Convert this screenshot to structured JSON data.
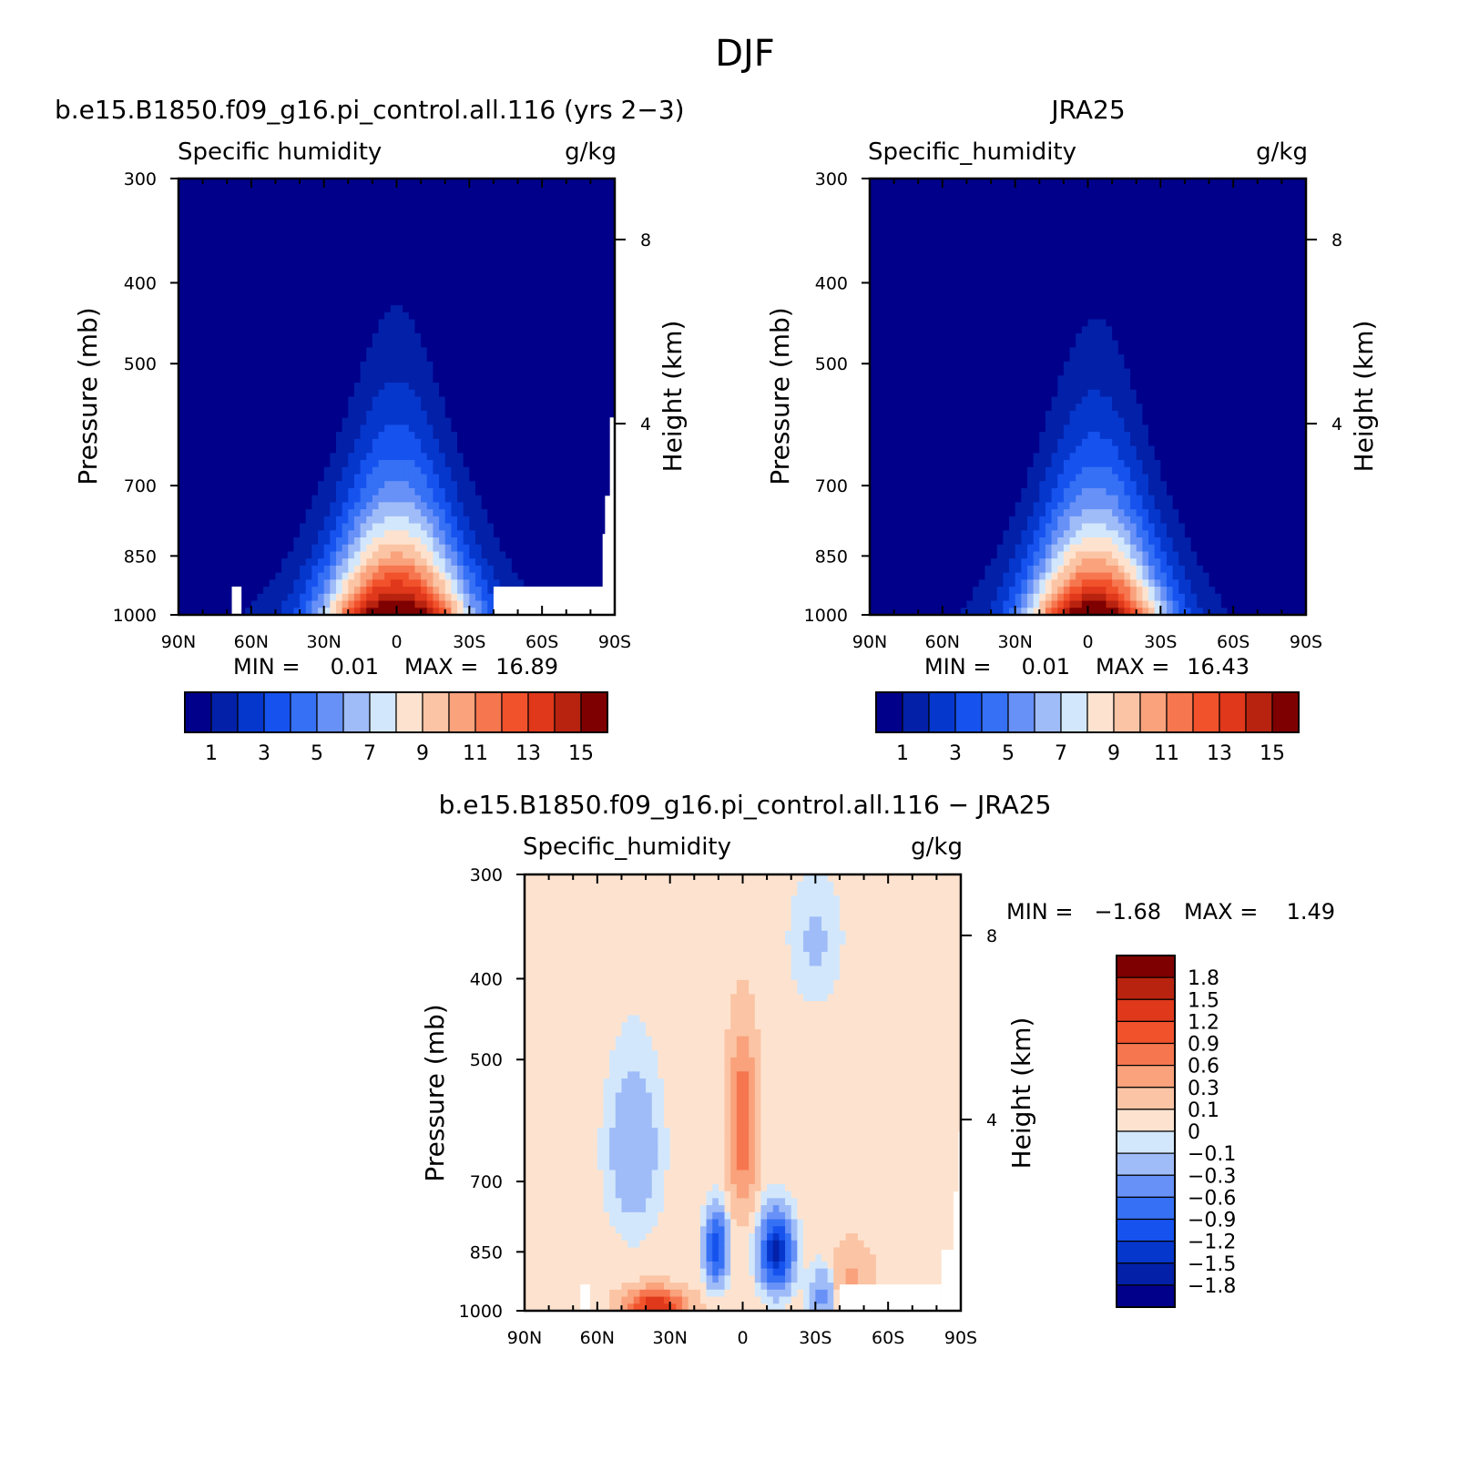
{
  "figure_title": "DJF",
  "colors": {
    "q_levels": [
      "#00008b",
      "#0320a8",
      "#0637cc",
      "#1652ee",
      "#3570f5",
      "#6891f7",
      "#9fbcf8",
      "#d2e7fb",
      "#fde3cf",
      "#fbc4a4",
      "#f9a27c",
      "#f6764f",
      "#f1522c",
      "#e0381b",
      "#b8230f",
      "#7f0000"
    ],
    "diff_levels": [
      "#00008b",
      "#0320a8",
      "#0637cc",
      "#1652ee",
      "#3570f5",
      "#6891f7",
      "#9fbcf8",
      "#d2e7fb",
      "#fde3cf",
      "#fbc4a4",
      "#f9a27c",
      "#f6764f",
      "#f1522c",
      "#e0381b",
      "#b8230f",
      "#7f0000"
    ]
  },
  "panels": [
    {
      "id": "model",
      "title": "b.e15.B1850.f09_g16.pi_control.all.116 (yrs 2−3)",
      "left_label": "Specific humidity",
      "units": "g/kg",
      "ylabel": "Pressure (mb)",
      "right_ylabel": "Height (km)",
      "stats_min_label": "MIN =",
      "stats_min": "0.01",
      "stats_max_label": "MAX =",
      "stats_max": "16.89"
    },
    {
      "id": "obs",
      "title": "JRA25",
      "left_label": "Specific_humidity",
      "units": "g/kg",
      "ylabel": "Pressure (mb)",
      "right_ylabel": "Height (km)",
      "stats_min_label": "MIN =",
      "stats_min": "0.01",
      "stats_max_label": "MAX =",
      "stats_max": "16.43"
    },
    {
      "id": "diff",
      "title": "b.e15.B1850.f09_g16.pi_control.all.116 − JRA25",
      "left_label": "Specific_humidity",
      "units": "g/kg",
      "ylabel": "Pressure (mb)",
      "right_ylabel": "Height (km)",
      "stats_min_label": "MIN =",
      "stats_min": "−1.68",
      "stats_max_label": "MAX =",
      "stats_max": "1.49"
    }
  ],
  "axes": {
    "x_ticks": [
      "90N",
      "60N",
      "30N",
      "0",
      "30S",
      "60S",
      "90S"
    ],
    "y_ticks": [
      "300",
      "400",
      "500",
      "700",
      "850",
      "1000"
    ],
    "height_ticks": [
      "8",
      "4"
    ]
  },
  "colorbar_q": {
    "labels": [
      "1",
      "3",
      "5",
      "7",
      "9",
      "11",
      "13",
      "15"
    ]
  },
  "colorbar_diff": {
    "labels": [
      "1.8",
      "1.5",
      "1.2",
      "0.9",
      "0.6",
      "0.3",
      "0.1",
      "0",
      "−0.1",
      "−0.3",
      "−0.6",
      "−0.9",
      "−1.2",
      "−1.5",
      "−1.8"
    ]
  },
  "chart_data": [
    {
      "type": "heatmap",
      "title": "b.e15.B1850.f09_g16.pi_control.all.116 (yrs 2−3)",
      "xlabel": "",
      "ylabel": "Pressure (mb)",
      "x_range": [
        90,
        -90
      ],
      "y_range_mb": [
        300,
        1000
      ],
      "y_scale": "log",
      "levels": [
        0,
        1,
        2,
        3,
        4,
        5,
        6,
        7,
        8,
        9,
        10,
        11,
        12,
        13,
        14,
        15,
        16
      ],
      "min": 0.01,
      "max": 16.89,
      "peak": {
        "lat": 0,
        "p": 1000,
        "value": 16.89
      },
      "profile": "latitude halfwidth at 1000 mb ~ 28 deg, moisture top ~ 400 mb near equator"
    },
    {
      "type": "heatmap",
      "title": "JRA25",
      "xlabel": "",
      "ylabel": "Pressure (mb)",
      "x_range": [
        90,
        -90
      ],
      "y_range_mb": [
        300,
        1000
      ],
      "y_scale": "log",
      "levels": [
        0,
        1,
        2,
        3,
        4,
        5,
        6,
        7,
        8,
        9,
        10,
        11,
        12,
        13,
        14,
        15,
        16
      ],
      "min": 0.01,
      "max": 16.43,
      "peak": {
        "lat": -3,
        "p": 1000,
        "value": 16.43
      }
    },
    {
      "type": "heatmap",
      "title": "b.e15.B1850.f09_g16.pi_control.all.116 − JRA25",
      "xlabel": "",
      "ylabel": "Pressure (mb)",
      "x_range": [
        90,
        -90
      ],
      "y_range_mb": [
        300,
        1000
      ],
      "y_scale": "log",
      "levels": [
        -1.8,
        -1.5,
        -1.2,
        -0.9,
        -0.6,
        -0.3,
        -0.1,
        0,
        0.1,
        0.3,
        0.6,
        0.9,
        1.2,
        1.5,
        1.8
      ],
      "min": -1.68,
      "max": 1.49,
      "features": [
        {
          "lat": 0,
          "p": 600,
          "value": 0.9
        },
        {
          "lat": -15,
          "p": 850,
          "value": -1.68
        },
        {
          "lat": 12,
          "p": 850,
          "value": -1.2
        },
        {
          "lat": 35,
          "p": 990,
          "value": 1.49
        }
      ]
    }
  ]
}
